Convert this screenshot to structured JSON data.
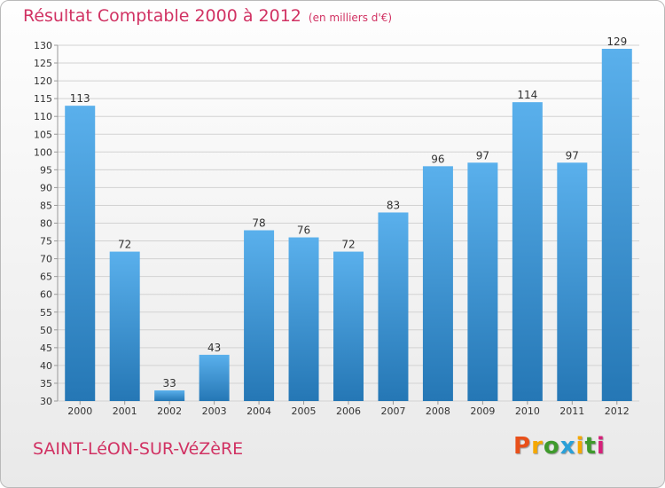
{
  "header": {
    "title": "Résultat Comptable 2000 à 2012",
    "unit": "(en milliers d'€)"
  },
  "footer": {
    "commune": "SAINT-LéON-SUR-VéZèRE"
  },
  "logo": {
    "letters": [
      "P",
      "r",
      "o",
      "x",
      "i",
      "t",
      "i"
    ],
    "colors": [
      "#e8501a",
      "#f5a800",
      "#3f9a2c",
      "#2aa0d8",
      "#f5a800",
      "#3f9a2c",
      "#d6207a"
    ]
  },
  "chart_data": {
    "type": "bar",
    "categories": [
      "2000",
      "2001",
      "2002",
      "2003",
      "2004",
      "2005",
      "2006",
      "2007",
      "2008",
      "2009",
      "2010",
      "2011",
      "2012"
    ],
    "values": [
      113,
      72,
      33,
      43,
      78,
      76,
      72,
      83,
      96,
      97,
      114,
      97,
      129
    ],
    "ylim": [
      30,
      130
    ],
    "yticks": [
      30,
      35,
      40,
      45,
      50,
      55,
      60,
      65,
      70,
      75,
      80,
      85,
      90,
      95,
      100,
      105,
      110,
      115,
      120,
      125,
      130
    ],
    "grid": true,
    "colors": {
      "bar_light": "#5ab0ec",
      "bar_dark": "#2577b5",
      "grid": "#d2d2d2",
      "axis": "#999999"
    }
  }
}
